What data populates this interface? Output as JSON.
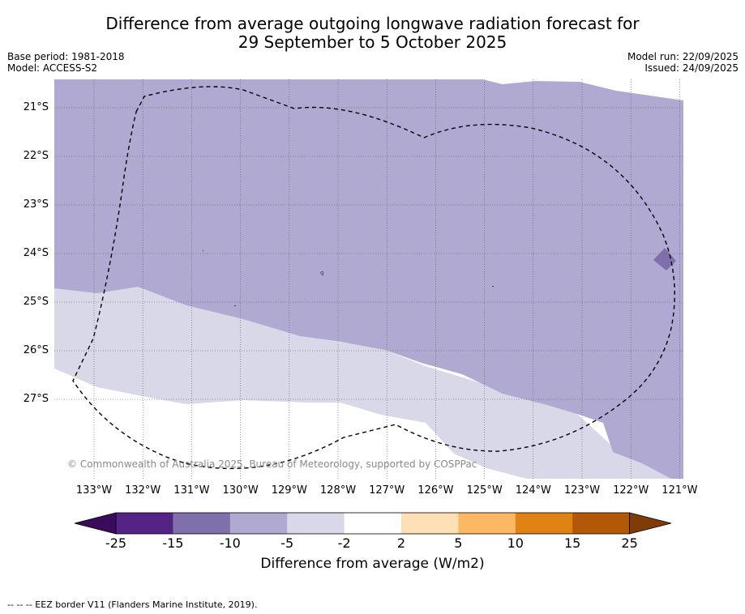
{
  "title": {
    "line1": "Difference from average outgoing longwave radiation forecast for",
    "line2": "29 September to 5 October 2025"
  },
  "meta": {
    "base_period": "Base period: 1981-2018",
    "model": "Model: ACCESS-S2",
    "model_run": "Model run: 22/09/2025",
    "issued": "Issued: 24/09/2025"
  },
  "map": {
    "lat_labels": [
      "21°S",
      "22°S",
      "23°S",
      "24°S",
      "25°S",
      "26°S",
      "27°S"
    ],
    "lon_labels": [
      "133°W",
      "132°W",
      "131°W",
      "130°W",
      "129°W",
      "128°W",
      "127°W",
      "126°W",
      "125°W",
      "124°W",
      "123°W",
      "122°W",
      "121°W"
    ],
    "copyright": "© Commonwealth of Australia 2025, Bureau of Meteorology, supported by COSPPac",
    "colors": {
      "light_negative": "#d8d8e9",
      "mid_negative": "#b0aad2",
      "strong_negative": "#7f6fab"
    }
  },
  "colorbar": {
    "ticks": [
      "-25",
      "-15",
      "-10",
      "-5",
      "-2",
      "2",
      "5",
      "10",
      "15",
      "25"
    ],
    "colors": [
      "#3b0a5a",
      "#542385",
      "#7f6fab",
      "#b0aad2",
      "#d8d8e9",
      "#ffffff",
      "#fee0b6",
      "#fdb863",
      "#e08214",
      "#b35806",
      "#7f3b08"
    ],
    "label": "Difference from average (W/m2)"
  },
  "footnote": "--  --  -- EEZ border V11 (Flanders Marine Institute, 2019)."
}
